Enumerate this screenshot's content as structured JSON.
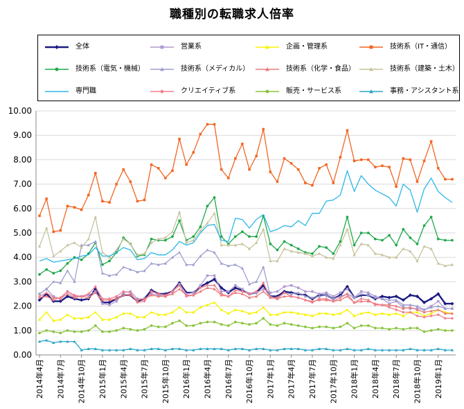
{
  "chart_data": {
    "type": "line",
    "title": "職種別の転職求人倍率",
    "xlabel": "",
    "ylabel": "",
    "ylim": [
      0,
      10
    ],
    "yticks": [
      "0.00",
      "1.00",
      "2.00",
      "3.00",
      "4.00",
      "5.00",
      "6.00",
      "7.00",
      "8.00",
      "9.00",
      "10.00"
    ],
    "x": [
      "2014年4月",
      "2014年5月",
      "2014年6月",
      "2014年7月",
      "2014年8月",
      "2014年9月",
      "2014年10月",
      "2014年11月",
      "2014年12月",
      "2015年1月",
      "2015年2月",
      "2015年3月",
      "2015年4月",
      "2015年5月",
      "2015年6月",
      "2015年7月",
      "2015年8月",
      "2015年9月",
      "2015年10月",
      "2015年11月",
      "2015年12月",
      "2016年1月",
      "2016年2月",
      "2016年3月",
      "2016年4月",
      "2016年5月",
      "2016年6月",
      "2016年7月",
      "2016年8月",
      "2016年9月",
      "2016年10月",
      "2016年11月",
      "2016年12月",
      "2017年1月",
      "2017年2月",
      "2017年3月",
      "2017年4月",
      "2017年5月",
      "2017年6月",
      "2017年7月",
      "2017年8月",
      "2017年9月",
      "2017年10月",
      "2017年11月",
      "2017年12月",
      "2018年1月",
      "2018年2月",
      "2018年3月",
      "2018年4月",
      "2018年5月",
      "2018年6月",
      "2018年7月",
      "2018年8月",
      "2018年9月",
      "2018年10月",
      "2018年11月",
      "2018年12月",
      "2019年1月",
      "2019年2月",
      "2019年3月"
    ],
    "xtick_labels": [
      "2014年4月",
      "2014年7月",
      "2014年10月",
      "2015年1月",
      "2015年4月",
      "2015年7月",
      "2015年10月",
      "2016年1月",
      "2016年4月",
      "2016年7月",
      "2016年10月",
      "2017年1月",
      "2017年4月",
      "2017年7月",
      "2017年10月",
      "2018年1月",
      "2018年4月",
      "2018年7月",
      "2018年10月",
      "2019年1月"
    ],
    "series": [
      {
        "name": "全体",
        "color": "#1a1a80",
        "marker": "diamond",
        "values": [
          2.25,
          2.5,
          2.2,
          2.2,
          2.4,
          2.3,
          2.25,
          2.3,
          2.7,
          2.15,
          2.15,
          2.3,
          2.45,
          2.45,
          2.2,
          2.3,
          2.65,
          2.5,
          2.5,
          2.6,
          2.95,
          2.55,
          2.55,
          2.8,
          2.95,
          3.1,
          2.75,
          2.55,
          2.75,
          2.65,
          2.5,
          2.55,
          2.85,
          2.4,
          2.4,
          2.6,
          2.55,
          2.5,
          2.45,
          2.3,
          2.45,
          2.45,
          2.3,
          2.45,
          2.8,
          2.35,
          2.45,
          2.45,
          2.3,
          2.4,
          2.35,
          2.4,
          2.25,
          2.45,
          2.4,
          2.15,
          2.3,
          2.5,
          2.1,
          2.1
        ]
      },
      {
        "name": "営業系",
        "color": "#b09ad0",
        "marker": "square",
        "values": [
          2.5,
          2.7,
          2.4,
          2.3,
          2.6,
          2.4,
          2.4,
          2.45,
          2.6,
          2.1,
          2.05,
          2.2,
          2.55,
          2.6,
          2.3,
          2.3,
          2.5,
          2.45,
          2.4,
          2.6,
          2.9,
          2.5,
          2.55,
          2.85,
          3.25,
          3.25,
          2.6,
          2.6,
          2.85,
          2.7,
          2.5,
          2.55,
          2.7,
          2.55,
          2.6,
          2.8,
          2.85,
          2.75,
          2.6,
          2.6,
          2.5,
          2.55,
          2.4,
          2.55,
          2.7,
          2.35,
          2.6,
          2.55,
          2.4,
          2.3,
          2.1,
          2.2,
          1.95,
          1.9,
          1.9,
          1.85,
          2.0,
          2.2,
          1.9,
          1.9
        ]
      },
      {
        "name": "企画・管理系",
        "color": "#f5f200",
        "marker": "triangle",
        "values": [
          1.45,
          1.75,
          1.4,
          1.45,
          1.65,
          1.5,
          1.5,
          1.55,
          1.75,
          1.45,
          1.45,
          1.55,
          1.7,
          1.7,
          1.55,
          1.55,
          1.75,
          1.65,
          1.65,
          1.75,
          1.95,
          1.75,
          1.75,
          1.95,
          2.05,
          2.15,
          1.85,
          1.7,
          1.85,
          1.8,
          1.7,
          1.75,
          1.95,
          1.65,
          1.65,
          1.75,
          1.75,
          1.7,
          1.65,
          1.6,
          1.7,
          1.7,
          1.65,
          1.7,
          1.85,
          1.6,
          1.7,
          1.75,
          1.65,
          1.7,
          1.65,
          1.7,
          1.6,
          1.75,
          1.75,
          1.6,
          1.7,
          1.85,
          1.75,
          1.7
        ]
      },
      {
        "name": "技術系（IT・通信）",
        "color": "#f26522",
        "marker": "square",
        "values": [
          5.7,
          6.4,
          5.05,
          5.1,
          6.1,
          6.05,
          5.95,
          6.55,
          7.45,
          6.3,
          6.25,
          7.0,
          7.6,
          7.1,
          6.3,
          6.35,
          7.8,
          7.65,
          7.25,
          7.55,
          8.85,
          7.8,
          8.3,
          9.05,
          9.45,
          9.45,
          7.6,
          7.25,
          8.05,
          8.65,
          7.6,
          8.15,
          9.25,
          7.5,
          7.1,
          8.05,
          7.85,
          7.6,
          7.05,
          6.95,
          7.65,
          7.8,
          7.05,
          8.1,
          9.2,
          7.95,
          8.0,
          8.0,
          7.7,
          7.75,
          7.7,
          6.9,
          8.05,
          8.0,
          7.1,
          7.95,
          8.75,
          7.65,
          7.2,
          7.2
        ]
      },
      {
        "name": "技術系（電気・機械）",
        "color": "#1fa84a",
        "marker": "circle",
        "values": [
          3.3,
          3.5,
          3.35,
          3.45,
          3.75,
          4.0,
          3.9,
          4.15,
          4.6,
          3.7,
          3.85,
          4.2,
          4.8,
          4.55,
          4.05,
          4.1,
          4.75,
          4.7,
          4.7,
          4.85,
          5.5,
          4.7,
          4.85,
          5.25,
          6.1,
          6.45,
          4.85,
          4.55,
          4.85,
          5.05,
          4.85,
          4.85,
          5.7,
          4.55,
          4.3,
          4.65,
          4.5,
          4.35,
          4.2,
          4.15,
          4.45,
          4.4,
          4.15,
          4.65,
          5.65,
          4.5,
          5.0,
          5.0,
          4.75,
          4.7,
          4.9,
          4.5,
          5.15,
          4.8,
          4.55,
          5.3,
          5.65,
          4.75,
          4.7,
          4.7
        ]
      },
      {
        "name": "技術系（メディカル）",
        "color": "#9e9ed0",
        "marker": "triangle",
        "values": [
          2.5,
          2.7,
          3.0,
          2.95,
          3.45,
          3.0,
          4.5,
          4.5,
          4.65,
          3.35,
          3.25,
          3.3,
          3.6,
          3.5,
          3.4,
          3.45,
          3.75,
          3.7,
          3.75,
          4.0,
          4.2,
          3.7,
          3.7,
          4.05,
          4.3,
          4.2,
          3.75,
          3.65,
          3.7,
          3.55,
          2.9,
          3.0,
          3.6,
          2.4,
          2.3,
          2.55,
          2.5,
          2.55,
          2.4,
          2.35,
          2.4,
          2.45,
          2.3,
          2.4,
          2.5,
          2.35,
          2.5,
          2.45,
          2.35,
          2.3,
          2.25,
          2.25,
          2.05,
          2.05,
          2.0,
          1.85,
          1.95,
          2.0,
          1.9,
          1.9
        ]
      },
      {
        "name": "技術系（化学・食品）",
        "color": "#e97b7b",
        "marker": "triangle",
        "values": [
          2.4,
          2.55,
          2.35,
          2.3,
          2.5,
          2.35,
          2.4,
          2.35,
          2.55,
          2.25,
          2.25,
          2.3,
          2.45,
          2.45,
          2.25,
          2.3,
          2.45,
          2.4,
          2.4,
          2.5,
          2.7,
          2.45,
          2.45,
          2.6,
          2.75,
          2.7,
          2.45,
          2.4,
          2.55,
          2.5,
          2.35,
          2.4,
          2.6,
          2.35,
          2.3,
          2.4,
          2.4,
          2.35,
          2.25,
          2.2,
          2.25,
          2.25,
          2.2,
          2.25,
          2.4,
          2.15,
          2.2,
          2.2,
          2.1,
          2.05,
          2.05,
          2.0,
          1.9,
          1.95,
          1.85,
          1.75,
          1.8,
          1.85,
          1.7,
          1.7
        ]
      },
      {
        "name": "技術系（建築・土木）",
        "color": "#c7c39c",
        "marker": "triangle",
        "values": [
          4.45,
          5.2,
          4.05,
          4.25,
          4.5,
          4.6,
          4.4,
          4.75,
          5.65,
          4.2,
          4.0,
          4.3,
          4.75,
          4.55,
          4.1,
          4.15,
          4.6,
          4.75,
          4.8,
          5.05,
          5.85,
          4.6,
          4.7,
          5.1,
          5.4,
          5.8,
          4.5,
          4.5,
          4.5,
          4.55,
          4.35,
          4.6,
          5.15,
          3.85,
          3.85,
          4.35,
          4.25,
          4.2,
          4.15,
          4.05,
          4.15,
          4.0,
          3.95,
          4.5,
          5.15,
          4.1,
          4.55,
          4.5,
          4.15,
          4.1,
          4.0,
          4.0,
          4.35,
          4.25,
          3.85,
          4.45,
          4.35,
          3.75,
          3.65,
          3.7
        ]
      },
      {
        "name": "専門職",
        "color": "#29b6e8",
        "marker": "none",
        "values": [
          3.85,
          3.95,
          3.8,
          3.85,
          3.9,
          3.95,
          4.05,
          4.1,
          4.4,
          4.05,
          4.05,
          4.2,
          4.4,
          4.3,
          3.9,
          3.95,
          4.2,
          4.1,
          4.1,
          4.3,
          4.65,
          4.5,
          4.6,
          5.0,
          5.3,
          5.35,
          4.7,
          4.65,
          5.6,
          5.55,
          5.2,
          5.55,
          5.75,
          5.05,
          5.15,
          5.3,
          5.25,
          5.5,
          5.3,
          5.8,
          5.8,
          6.3,
          6.35,
          6.55,
          7.55,
          6.7,
          7.35,
          7.0,
          6.75,
          6.6,
          6.45,
          6.1,
          7.0,
          6.75,
          5.85,
          6.8,
          7.25,
          6.7,
          6.45,
          6.25
        ]
      },
      {
        "name": "クリエイティブ系",
        "color": "#f07e8e",
        "marker": "diamond",
        "values": [
          2.35,
          2.4,
          2.25,
          2.35,
          2.6,
          2.45,
          2.4,
          2.5,
          2.8,
          2.3,
          2.3,
          2.4,
          2.6,
          2.55,
          2.15,
          2.2,
          2.6,
          2.5,
          2.45,
          2.6,
          2.85,
          2.4,
          2.45,
          2.75,
          2.85,
          2.85,
          2.5,
          2.4,
          2.65,
          2.6,
          2.5,
          2.6,
          2.95,
          2.35,
          2.35,
          2.55,
          2.4,
          2.35,
          2.25,
          2.15,
          2.3,
          2.3,
          2.2,
          2.35,
          2.5,
          2.15,
          2.3,
          2.25,
          2.05,
          2.05,
          1.95,
          1.85,
          1.75,
          1.75,
          1.6,
          1.55,
          1.6,
          1.65,
          1.5,
          1.5
        ]
      },
      {
        "name": "販売・サービス系",
        "color": "#8ac43c",
        "marker": "circle",
        "values": [
          0.9,
          1.0,
          0.95,
          0.9,
          1.0,
          0.95,
          0.95,
          1.0,
          1.2,
          0.95,
          0.95,
          1.0,
          1.1,
          1.05,
          1.0,
          1.05,
          1.2,
          1.15,
          1.15,
          1.3,
          1.4,
          1.2,
          1.2,
          1.3,
          1.35,
          1.35,
          1.25,
          1.2,
          1.35,
          1.3,
          1.25,
          1.3,
          1.5,
          1.25,
          1.2,
          1.3,
          1.25,
          1.2,
          1.15,
          1.1,
          1.15,
          1.15,
          1.1,
          1.15,
          1.3,
          1.1,
          1.2,
          1.2,
          1.1,
          1.1,
          1.05,
          1.1,
          1.05,
          1.1,
          1.1,
          0.95,
          1.0,
          1.05,
          1.0,
          1.0
        ]
      },
      {
        "name": "事務・アシスタント系",
        "color": "#2aa5c8",
        "marker": "triangle",
        "values": [
          0.55,
          0.6,
          0.5,
          0.55,
          0.55,
          0.55,
          0.2,
          0.25,
          0.25,
          0.2,
          0.2,
          0.2,
          0.2,
          0.25,
          0.2,
          0.2,
          0.25,
          0.25,
          0.2,
          0.25,
          0.25,
          0.2,
          0.2,
          0.25,
          0.25,
          0.25,
          0.25,
          0.2,
          0.25,
          0.25,
          0.2,
          0.25,
          0.25,
          0.2,
          0.2,
          0.25,
          0.25,
          0.25,
          0.2,
          0.2,
          0.25,
          0.25,
          0.2,
          0.2,
          0.25,
          0.2,
          0.2,
          0.25,
          0.2,
          0.2,
          0.2,
          0.2,
          0.2,
          0.25,
          0.2,
          0.2,
          0.2,
          0.25,
          0.2,
          0.2
        ]
      }
    ]
  }
}
